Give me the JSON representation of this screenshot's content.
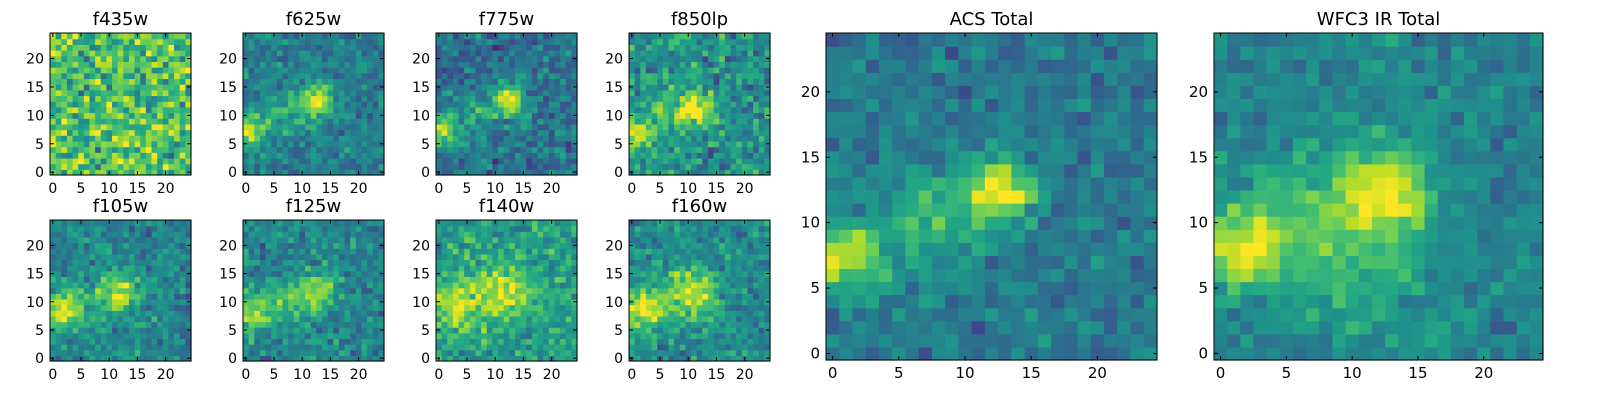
{
  "chart_data": [
    {
      "type": "heatmap",
      "title": "f435w",
      "colormap": "viridis",
      "grid_size": [
        25,
        25
      ],
      "xlim": [
        -0.5,
        24.5
      ],
      "ylim": [
        -0.5,
        24.5
      ],
      "xticks": [
        0,
        5,
        10,
        15,
        20
      ],
      "yticks": [
        0,
        5,
        10,
        15,
        20
      ],
      "xtick_labels": [
        "0",
        "5",
        "10",
        "15",
        "20"
      ],
      "ytick_labels": [
        "0",
        "5",
        "10",
        "15",
        "20"
      ],
      "noise_level": 0.22,
      "background_level": 0.72,
      "sources": [],
      "grid": false,
      "legend": "none"
    },
    {
      "type": "heatmap",
      "title": "f625w",
      "colormap": "viridis",
      "grid_size": [
        25,
        25
      ],
      "xlim": [
        -0.5,
        24.5
      ],
      "ylim": [
        -0.5,
        24.5
      ],
      "xticks": [
        0,
        5,
        10,
        15,
        20
      ],
      "yticks": [
        0,
        5,
        10,
        15,
        20
      ],
      "xtick_labels": [
        "0",
        "5",
        "10",
        "15",
        "20"
      ],
      "ytick_labels": [
        "0",
        "5",
        "10",
        "15",
        "20"
      ],
      "noise_level": 0.12,
      "background_level": 0.42,
      "sources": [
        {
          "x": 12.5,
          "y": 12.5,
          "sigma": 2.0,
          "amp": 0.55
        },
        {
          "x": 0.5,
          "y": 7.5,
          "sigma": 1.8,
          "amp": 0.5
        },
        {
          "x": 6.5,
          "y": 10.0,
          "sigma": 3.0,
          "amp": 0.2
        }
      ],
      "grid": false,
      "legend": "none"
    },
    {
      "type": "heatmap",
      "title": "f775w",
      "colormap": "viridis",
      "grid_size": [
        25,
        25
      ],
      "xlim": [
        -0.5,
        24.5
      ],
      "ylim": [
        -0.5,
        24.5
      ],
      "xticks": [
        0,
        5,
        10,
        15,
        20
      ],
      "yticks": [
        0,
        5,
        10,
        15,
        20
      ],
      "xtick_labels": [
        "0",
        "5",
        "10",
        "15",
        "20"
      ],
      "ytick_labels": [
        "0",
        "5",
        "10",
        "15",
        "20"
      ],
      "noise_level": 0.14,
      "background_level": 0.38,
      "sources": [
        {
          "x": 12.5,
          "y": 12.5,
          "sigma": 2.0,
          "amp": 0.55
        },
        {
          "x": 0.5,
          "y": 7.5,
          "sigma": 1.8,
          "amp": 0.5
        },
        {
          "x": 6.5,
          "y": 10.0,
          "sigma": 3.0,
          "amp": 0.2
        }
      ],
      "grid": false,
      "legend": "none"
    },
    {
      "type": "heatmap",
      "title": "f850lp",
      "colormap": "viridis",
      "grid_size": [
        25,
        25
      ],
      "xlim": [
        -0.5,
        24.5
      ],
      "ylim": [
        -0.5,
        24.5
      ],
      "xticks": [
        0,
        5,
        10,
        15,
        20
      ],
      "yticks": [
        0,
        5,
        10,
        15,
        20
      ],
      "xtick_labels": [
        "0",
        "5",
        "10",
        "15",
        "20"
      ],
      "ytick_labels": [
        "0",
        "5",
        "10",
        "15",
        "20"
      ],
      "noise_level": 0.16,
      "background_level": 0.5,
      "sources": [
        {
          "x": 11.5,
          "y": 11.5,
          "sigma": 2.2,
          "amp": 0.45
        },
        {
          "x": 0.5,
          "y": 7.5,
          "sigma": 2.0,
          "amp": 0.4
        },
        {
          "x": 6.5,
          "y": 10.0,
          "sigma": 3.0,
          "amp": 0.2
        }
      ],
      "grid": false,
      "legend": "none"
    },
    {
      "type": "heatmap",
      "title": "f105w",
      "colormap": "viridis",
      "grid_size": [
        25,
        25
      ],
      "xlim": [
        -0.5,
        24.5
      ],
      "ylim": [
        -0.5,
        24.5
      ],
      "xticks": [
        0,
        5,
        10,
        15,
        20
      ],
      "yticks": [
        0,
        5,
        10,
        15,
        20
      ],
      "xtick_labels": [
        "0",
        "5",
        "10",
        "15",
        "20"
      ],
      "ytick_labels": [
        "0",
        "5",
        "10",
        "15",
        "20"
      ],
      "noise_level": 0.13,
      "background_level": 0.45,
      "sources": [
        {
          "x": 12.0,
          "y": 12.0,
          "sigma": 2.2,
          "amp": 0.4
        },
        {
          "x": 1.5,
          "y": 8.5,
          "sigma": 2.2,
          "amp": 0.45
        },
        {
          "x": 7.0,
          "y": 10.0,
          "sigma": 3.5,
          "amp": 0.2
        }
      ],
      "grid": false,
      "legend": "none"
    },
    {
      "type": "heatmap",
      "title": "f125w",
      "colormap": "viridis",
      "grid_size": [
        25,
        25
      ],
      "xlim": [
        -0.5,
        24.5
      ],
      "ylim": [
        -0.5,
        24.5
      ],
      "xticks": [
        0,
        5,
        10,
        15,
        20
      ],
      "yticks": [
        0,
        5,
        10,
        15,
        20
      ],
      "xtick_labels": [
        "0",
        "5",
        "10",
        "15",
        "20"
      ],
      "ytick_labels": [
        "0",
        "5",
        "10",
        "15",
        "20"
      ],
      "noise_level": 0.13,
      "background_level": 0.45,
      "sources": [
        {
          "x": 12.5,
          "y": 12.0,
          "sigma": 2.3,
          "amp": 0.4
        },
        {
          "x": 1.0,
          "y": 8.0,
          "sigma": 2.2,
          "amp": 0.4
        },
        {
          "x": 7.0,
          "y": 10.0,
          "sigma": 3.5,
          "amp": 0.22
        }
      ],
      "grid": false,
      "legend": "none"
    },
    {
      "type": "heatmap",
      "title": "f140w",
      "colormap": "viridis",
      "grid_size": [
        25,
        25
      ],
      "xlim": [
        -0.5,
        24.5
      ],
      "ylim": [
        -0.5,
        24.5
      ],
      "xticks": [
        0,
        5,
        10,
        15,
        20
      ],
      "yticks": [
        0,
        5,
        10,
        15,
        20
      ],
      "xtick_labels": [
        "0",
        "5",
        "10",
        "15",
        "20"
      ],
      "ytick_labels": [
        "0",
        "5",
        "10",
        "15",
        "20"
      ],
      "noise_level": 0.14,
      "background_level": 0.55,
      "sources": [
        {
          "x": 12.0,
          "y": 12.0,
          "sigma": 3.0,
          "amp": 0.3
        },
        {
          "x": 3.0,
          "y": 9.0,
          "sigma": 3.0,
          "amp": 0.3
        },
        {
          "x": 8.0,
          "y": 11.0,
          "sigma": 4.0,
          "amp": 0.15
        }
      ],
      "grid": false,
      "legend": "none"
    },
    {
      "type": "heatmap",
      "title": "f160w",
      "colormap": "viridis",
      "grid_size": [
        25,
        25
      ],
      "xlim": [
        -0.5,
        24.5
      ],
      "ylim": [
        -0.5,
        24.5
      ],
      "xticks": [
        0,
        5,
        10,
        15,
        20
      ],
      "yticks": [
        0,
        5,
        10,
        15,
        20
      ],
      "xtick_labels": [
        "0",
        "5",
        "10",
        "15",
        "20"
      ],
      "ytick_labels": [
        "0",
        "5",
        "10",
        "15",
        "20"
      ],
      "noise_level": 0.13,
      "background_level": 0.48,
      "sources": [
        {
          "x": 11.5,
          "y": 12.0,
          "sigma": 2.6,
          "amp": 0.4
        },
        {
          "x": 1.5,
          "y": 8.5,
          "sigma": 2.4,
          "amp": 0.45
        },
        {
          "x": 7.0,
          "y": 10.0,
          "sigma": 3.5,
          "amp": 0.22
        }
      ],
      "grid": false,
      "legend": "none"
    },
    {
      "type": "heatmap",
      "title": "ACS Total",
      "colormap": "viridis",
      "grid_size": [
        25,
        25
      ],
      "xlim": [
        -0.5,
        24.5
      ],
      "ylim": [
        -0.5,
        24.5
      ],
      "xticks": [
        0,
        5,
        10,
        15,
        20
      ],
      "yticks": [
        0,
        5,
        10,
        15,
        20
      ],
      "xtick_labels": [
        "0",
        "5",
        "10",
        "15",
        "20"
      ],
      "ytick_labels": [
        "0",
        "5",
        "10",
        "15",
        "20"
      ],
      "noise_level": 0.1,
      "background_level": 0.4,
      "sources": [
        {
          "x": 12.5,
          "y": 12.5,
          "sigma": 1.8,
          "amp": 0.6
        },
        {
          "x": 1.0,
          "y": 7.5,
          "sigma": 1.8,
          "amp": 0.55
        },
        {
          "x": 7.0,
          "y": 10.0,
          "sigma": 3.0,
          "amp": 0.25
        }
      ],
      "grid": false,
      "legend": "none"
    },
    {
      "type": "heatmap",
      "title": "WFC3 IR Total",
      "colormap": "viridis",
      "grid_size": [
        25,
        25
      ],
      "xlim": [
        -0.5,
        24.5
      ],
      "ylim": [
        -0.5,
        24.5
      ],
      "xticks": [
        0,
        5,
        10,
        15,
        20
      ],
      "yticks": [
        0,
        5,
        10,
        15,
        20
      ],
      "xtick_labels": [
        "0",
        "5",
        "10",
        "15",
        "20"
      ],
      "ytick_labels": [
        "0",
        "5",
        "10",
        "15",
        "20"
      ],
      "noise_level": 0.09,
      "background_level": 0.44,
      "sources": [
        {
          "x": 12.5,
          "y": 12.5,
          "sigma": 2.4,
          "amp": 0.5
        },
        {
          "x": 1.5,
          "y": 8.0,
          "sigma": 2.2,
          "amp": 0.5
        },
        {
          "x": 7.0,
          "y": 10.5,
          "sigma": 3.8,
          "amp": 0.25
        },
        {
          "x": 12.0,
          "y": 5.0,
          "sigma": 3.5,
          "amp": 0.12
        }
      ],
      "grid": false,
      "legend": "none"
    }
  ]
}
